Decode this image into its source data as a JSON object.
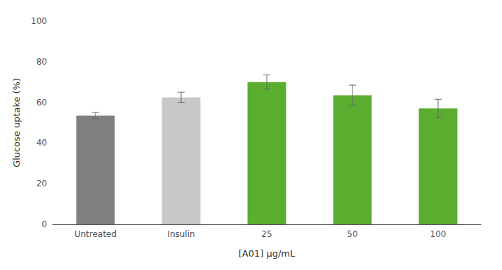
{
  "chart_data": {
    "type": "bar",
    "categories": [
      "Untreated",
      "Insulin",
      "25",
      "50",
      "100"
    ],
    "values": [
      53.5,
      62.5,
      70.0,
      63.5,
      57.0
    ],
    "errors": [
      1.5,
      2.5,
      3.5,
      5.0,
      4.5
    ],
    "colors": [
      "#808080",
      "#c8c8c8",
      "#5aad2e",
      "#5aad2e",
      "#5aad2e"
    ],
    "ylabel": "Glucose uptake (%)",
    "xlabel": "[A01] μg/mL",
    "ylim": [
      0,
      100
    ],
    "yticks": [
      0,
      20,
      40,
      60,
      80,
      100
    ],
    "grid": false
  }
}
